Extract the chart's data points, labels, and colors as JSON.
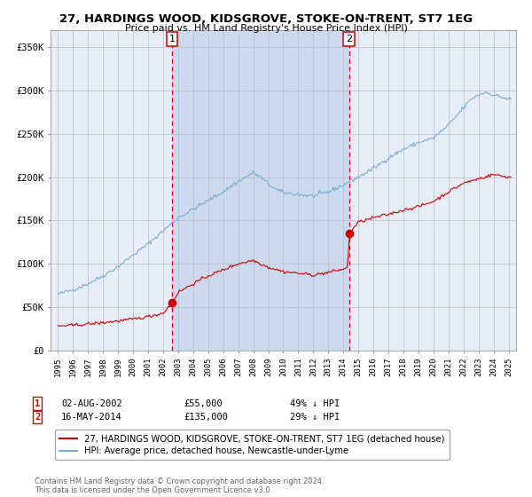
{
  "title": "27, HARDINGS WOOD, KIDSGROVE, STOKE-ON-TRENT, ST7 1EG",
  "subtitle": "Price paid vs. HM Land Registry's House Price Index (HPI)",
  "legend_entries": [
    "27, HARDINGS WOOD, KIDSGROVE, STOKE-ON-TRENT, ST7 1EG (detached house)",
    "HPI: Average price, detached house, Newcastle-under-Lyme"
  ],
  "hpi_color": "#7aadd4",
  "price_color": "#cc0000",
  "background_color": "#ffffff",
  "plot_bg_color": "#e8eef8",
  "shaded_region_color": "#ccdaee",
  "grid_color": "#bbbbcc",
  "transaction1": {
    "date_str": "02-AUG-2002",
    "price": 55000,
    "label": "1",
    "pct": "49% ↓ HPI"
  },
  "transaction2": {
    "date_str": "16-MAY-2014",
    "price": 135000,
    "label": "2",
    "pct": "29% ↓ HPI"
  },
  "ylabel_ticks": [
    "£0",
    "£50K",
    "£100K",
    "£150K",
    "£200K",
    "£250K",
    "£300K",
    "£350K"
  ],
  "ytick_values": [
    0,
    50000,
    100000,
    150000,
    200000,
    250000,
    300000,
    350000
  ],
  "ylim": [
    0,
    370000
  ],
  "footer": "Contains HM Land Registry data © Crown copyright and database right 2024.\nThis data is licensed under the Open Government Licence v3.0.",
  "transaction1_x": 2002.58,
  "transaction2_x": 2014.37,
  "xlim": [
    1994.5,
    2025.5
  ]
}
